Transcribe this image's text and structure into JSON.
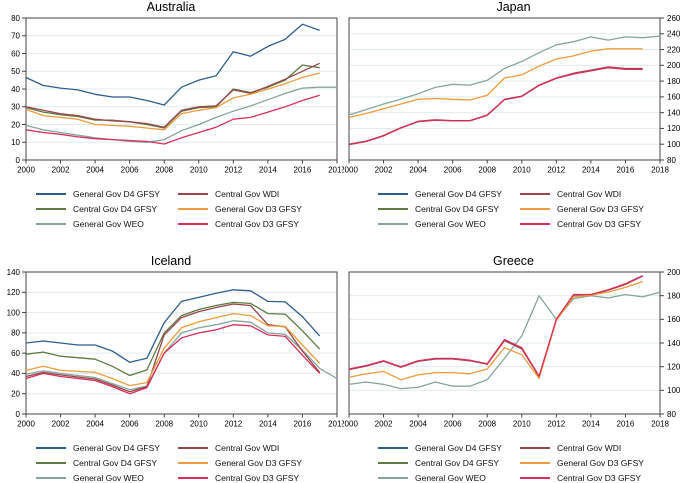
{
  "figure": {
    "background": "#ffffff"
  },
  "palette": {
    "navy": "#2e5e8e",
    "forest": "#5f7a40",
    "teal": "#87a59c",
    "maroon": "#97464c",
    "orange": "#ee9c3d",
    "cranberry": "#d8305a",
    "grid": "#e1ecf0",
    "axis": "#454545",
    "text": "#000000"
  },
  "legend": {
    "entries": [
      {
        "label": "General Gov D4 GFSY",
        "color_key": "navy"
      },
      {
        "label": "Central Gov WDI",
        "color_key": "maroon"
      },
      {
        "label": "Central Gov D4 GFSY",
        "color_key": "forest"
      },
      {
        "label": "General Gov D3 GFSY",
        "color_key": "orange"
      },
      {
        "label": "General Gov WEO",
        "color_key": "teal"
      },
      {
        "label": "Central Gov D3 GFSY",
        "color_key": "cranberry"
      }
    ]
  },
  "chart_data": [
    {
      "type": "line",
      "title": "Australia",
      "y_axis_side": "left",
      "ylim": [
        0,
        80
      ],
      "ytick_step": 10,
      "xlim": [
        2000,
        2018
      ],
      "xtick_step": 2,
      "x_start": 2000,
      "grid": true,
      "series": [
        {
          "name": "General Gov D4 GFSY",
          "color_key": "navy",
          "values": [
            46.5,
            42,
            40.5,
            39.5,
            37,
            35.5,
            35.5,
            33.5,
            31,
            41,
            45,
            47.5,
            61,
            58.5,
            64,
            68,
            76.5,
            73
          ]
        },
        {
          "name": "Central Gov D4 GFSY",
          "color_key": "forest",
          "values": [
            29.5,
            27,
            25.5,
            24.5,
            22.5,
            22.5,
            21.5,
            20,
            18,
            27.5,
            29.5,
            30,
            40,
            38,
            41,
            45,
            53.5,
            52
          ]
        },
        {
          "name": "General Gov WEO",
          "color_key": "teal",
          "values": [
            19.5,
            17,
            15.5,
            14,
            12.5,
            11.5,
            10.5,
            10,
            11.5,
            16.5,
            20,
            24,
            27.5,
            30.5,
            34,
            37.5,
            40.5,
            41,
            41
          ]
        },
        {
          "name": "Central Gov WDI",
          "color_key": "maroon",
          "values": [
            30,
            28,
            26,
            25,
            23,
            22,
            21.5,
            20.5,
            18.5,
            28,
            30,
            30.5,
            39.5,
            37.5,
            41.5,
            45.5,
            50,
            54.5
          ]
        },
        {
          "name": "General Gov D3 GFSY",
          "color_key": "orange",
          "values": [
            28.5,
            25,
            24,
            23,
            20,
            19.5,
            19,
            18,
            17,
            26,
            28,
            29.5,
            35,
            37,
            40,
            43,
            46.5,
            49
          ]
        },
        {
          "name": "Central Gov D3 GFSY",
          "color_key": "cranberry",
          "values": [
            17,
            15.5,
            14.5,
            13,
            12,
            11.5,
            11,
            10.5,
            9,
            12.5,
            15.5,
            18.5,
            23,
            24,
            27,
            30,
            33.5,
            36.5
          ]
        }
      ]
    },
    {
      "type": "line",
      "title": "Japan",
      "y_axis_side": "right",
      "ylim": [
        80,
        260
      ],
      "ytick_step": 20,
      "xlim": [
        2000,
        2018
      ],
      "xtick_step": 2,
      "x_start": 2000,
      "grid": true,
      "series": [
        {
          "name": "General Gov WEO",
          "color_key": "teal",
          "values": [
            137,
            144,
            151,
            157,
            164,
            172,
            176,
            175,
            181,
            196,
            205,
            216,
            226,
            230,
            236,
            232,
            236,
            235,
            237
          ]
        },
        {
          "name": "Central Gov WDI",
          "color_key": "maroon",
          "values": [
            100,
            104,
            111,
            121,
            129,
            131,
            130,
            130,
            137,
            157,
            161,
            175,
            184,
            190,
            194,
            198,
            196,
            196
          ]
        },
        {
          "name": "General Gov D3 GFSY",
          "color_key": "orange",
          "values": [
            134,
            139,
            145,
            151,
            157,
            158,
            157,
            156,
            162,
            184,
            188,
            199,
            208,
            212,
            218,
            221,
            221,
            221
          ]
        },
        {
          "name": "Central Gov D3 GFSY",
          "color_key": "cranberry",
          "values": [
            99.5,
            103.5,
            110.5,
            120.5,
            128.5,
            130.5,
            129.5,
            129.5,
            136.5,
            156.5,
            160.5,
            174.5,
            183.5,
            189,
            193,
            197,
            195,
            195
          ]
        }
      ]
    },
    {
      "type": "line",
      "title": "Iceland",
      "y_axis_side": "left",
      "ylim": [
        0,
        140
      ],
      "ytick_step": 20,
      "xlim": [
        2000,
        2018
      ],
      "xtick_step": 2,
      "x_start": 2000,
      "grid": true,
      "series": [
        {
          "name": "General Gov D4 GFSY",
          "color_key": "navy",
          "values": [
            70,
            72,
            70,
            68,
            68,
            62,
            51,
            55,
            90,
            111,
            115,
            119,
            122.5,
            121.5,
            111,
            110.5,
            96,
            77
          ]
        },
        {
          "name": "Central Gov D4 GFSY",
          "color_key": "forest",
          "values": [
            59,
            61,
            57,
            55.5,
            54,
            47,
            38,
            43.5,
            80,
            97,
            103,
            107,
            110,
            109,
            99,
            98.5,
            82,
            64
          ]
        },
        {
          "name": "General Gov WEO",
          "color_key": "teal",
          "values": [
            39,
            42.5,
            40,
            38,
            36,
            30,
            24,
            27.5,
            60,
            80,
            85,
            88,
            92,
            90.5,
            80,
            78.5,
            63,
            45,
            35
          ]
        },
        {
          "name": "Central Gov WDI",
          "color_key": "maroon",
          "values": [
            37,
            41,
            38.5,
            36.5,
            34.5,
            28.5,
            22,
            27,
            78,
            95,
            101,
            105,
            108.5,
            107,
            88,
            86,
            62,
            41
          ]
        },
        {
          "name": "General Gov D3 GFSY",
          "color_key": "orange",
          "values": [
            43,
            47,
            43,
            42,
            41,
            35,
            28,
            31,
            65,
            85,
            91,
            95,
            99,
            97,
            87,
            86.5,
            68,
            50
          ]
        },
        {
          "name": "Central Gov D3 GFSY",
          "color_key": "cranberry",
          "values": [
            35,
            40,
            37,
            35,
            33,
            27,
            20,
            26,
            60,
            75,
            80,
            83,
            88,
            87,
            78,
            76.5,
            58,
            40
          ]
        }
      ]
    },
    {
      "type": "line",
      "title": "Greece",
      "y_axis_side": "right",
      "ylim": [
        80,
        200
      ],
      "ytick_step": 20,
      "xlim": [
        2000,
        2018
      ],
      "xtick_step": 2,
      "x_start": 2000,
      "grid": true,
      "series": [
        {
          "name": "General Gov WEO",
          "color_key": "teal",
          "values": [
            105,
            107,
            105,
            101.5,
            102.5,
            107,
            103.5,
            103.5,
            109,
            127,
            146,
            180,
            160,
            177.5,
            180,
            178,
            181,
            179,
            183
          ]
        },
        {
          "name": "Central Gov WDI",
          "color_key": "maroon",
          "values": [
            117.5,
            120.5,
            124.5,
            119.5,
            124.5,
            126.5,
            126.5,
            125,
            122,
            142,
            135,
            111.5,
            159.5,
            180.5,
            180.5,
            184.5,
            189.5,
            196.5
          ]
        },
        {
          "name": "General Gov D3 GFSY",
          "color_key": "orange",
          "values": [
            111,
            114,
            116,
            109,
            113,
            115,
            115,
            114,
            118,
            136,
            130,
            110,
            159,
            179,
            180.5,
            183,
            187,
            192
          ]
        },
        {
          "name": "Central Gov D3 GFSY",
          "color_key": "cranberry",
          "values": [
            118,
            121,
            125,
            120,
            125,
            127,
            127,
            125.5,
            122.5,
            143,
            136,
            112,
            160,
            181,
            181,
            185,
            190,
            197
          ]
        }
      ]
    }
  ]
}
